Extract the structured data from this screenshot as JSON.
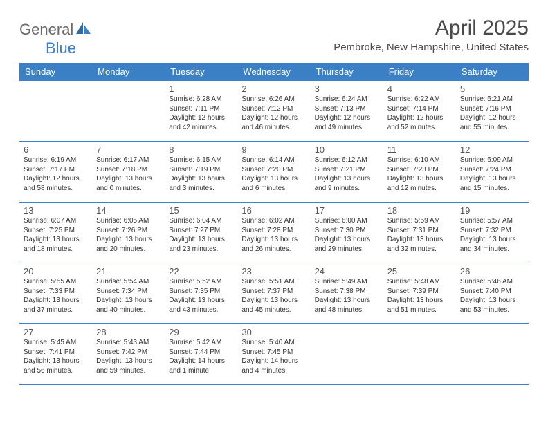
{
  "logo": {
    "text1": "General",
    "text2": "Blue"
  },
  "title": "April 2025",
  "subtitle": "Pembroke, New Hampshire, United States",
  "colors": {
    "header_bg": "#3b7fc4",
    "header_text": "#ffffff",
    "border": "#3b7fc4",
    "title_color": "#4a4a4a",
    "body_text": "#333333",
    "logo_gray": "#6a6a6a",
    "logo_blue": "#3b7fc4"
  },
  "day_headers": [
    "Sunday",
    "Monday",
    "Tuesday",
    "Wednesday",
    "Thursday",
    "Friday",
    "Saturday"
  ],
  "weeks": [
    [
      null,
      null,
      {
        "n": "1",
        "sunrise": "6:28 AM",
        "sunset": "7:11 PM",
        "daylight": "12 hours and 42 minutes."
      },
      {
        "n": "2",
        "sunrise": "6:26 AM",
        "sunset": "7:12 PM",
        "daylight": "12 hours and 46 minutes."
      },
      {
        "n": "3",
        "sunrise": "6:24 AM",
        "sunset": "7:13 PM",
        "daylight": "12 hours and 49 minutes."
      },
      {
        "n": "4",
        "sunrise": "6:22 AM",
        "sunset": "7:14 PM",
        "daylight": "12 hours and 52 minutes."
      },
      {
        "n": "5",
        "sunrise": "6:21 AM",
        "sunset": "7:16 PM",
        "daylight": "12 hours and 55 minutes."
      }
    ],
    [
      {
        "n": "6",
        "sunrise": "6:19 AM",
        "sunset": "7:17 PM",
        "daylight": "12 hours and 58 minutes."
      },
      {
        "n": "7",
        "sunrise": "6:17 AM",
        "sunset": "7:18 PM",
        "daylight": "13 hours and 0 minutes."
      },
      {
        "n": "8",
        "sunrise": "6:15 AM",
        "sunset": "7:19 PM",
        "daylight": "13 hours and 3 minutes."
      },
      {
        "n": "9",
        "sunrise": "6:14 AM",
        "sunset": "7:20 PM",
        "daylight": "13 hours and 6 minutes."
      },
      {
        "n": "10",
        "sunrise": "6:12 AM",
        "sunset": "7:21 PM",
        "daylight": "13 hours and 9 minutes."
      },
      {
        "n": "11",
        "sunrise": "6:10 AM",
        "sunset": "7:23 PM",
        "daylight": "13 hours and 12 minutes."
      },
      {
        "n": "12",
        "sunrise": "6:09 AM",
        "sunset": "7:24 PM",
        "daylight": "13 hours and 15 minutes."
      }
    ],
    [
      {
        "n": "13",
        "sunrise": "6:07 AM",
        "sunset": "7:25 PM",
        "daylight": "13 hours and 18 minutes."
      },
      {
        "n": "14",
        "sunrise": "6:05 AM",
        "sunset": "7:26 PM",
        "daylight": "13 hours and 20 minutes."
      },
      {
        "n": "15",
        "sunrise": "6:04 AM",
        "sunset": "7:27 PM",
        "daylight": "13 hours and 23 minutes."
      },
      {
        "n": "16",
        "sunrise": "6:02 AM",
        "sunset": "7:28 PM",
        "daylight": "13 hours and 26 minutes."
      },
      {
        "n": "17",
        "sunrise": "6:00 AM",
        "sunset": "7:30 PM",
        "daylight": "13 hours and 29 minutes."
      },
      {
        "n": "18",
        "sunrise": "5:59 AM",
        "sunset": "7:31 PM",
        "daylight": "13 hours and 32 minutes."
      },
      {
        "n": "19",
        "sunrise": "5:57 AM",
        "sunset": "7:32 PM",
        "daylight": "13 hours and 34 minutes."
      }
    ],
    [
      {
        "n": "20",
        "sunrise": "5:55 AM",
        "sunset": "7:33 PM",
        "daylight": "13 hours and 37 minutes."
      },
      {
        "n": "21",
        "sunrise": "5:54 AM",
        "sunset": "7:34 PM",
        "daylight": "13 hours and 40 minutes."
      },
      {
        "n": "22",
        "sunrise": "5:52 AM",
        "sunset": "7:35 PM",
        "daylight": "13 hours and 43 minutes."
      },
      {
        "n": "23",
        "sunrise": "5:51 AM",
        "sunset": "7:37 PM",
        "daylight": "13 hours and 45 minutes."
      },
      {
        "n": "24",
        "sunrise": "5:49 AM",
        "sunset": "7:38 PM",
        "daylight": "13 hours and 48 minutes."
      },
      {
        "n": "25",
        "sunrise": "5:48 AM",
        "sunset": "7:39 PM",
        "daylight": "13 hours and 51 minutes."
      },
      {
        "n": "26",
        "sunrise": "5:46 AM",
        "sunset": "7:40 PM",
        "daylight": "13 hours and 53 minutes."
      }
    ],
    [
      {
        "n": "27",
        "sunrise": "5:45 AM",
        "sunset": "7:41 PM",
        "daylight": "13 hours and 56 minutes."
      },
      {
        "n": "28",
        "sunrise": "5:43 AM",
        "sunset": "7:42 PM",
        "daylight": "13 hours and 59 minutes."
      },
      {
        "n": "29",
        "sunrise": "5:42 AM",
        "sunset": "7:44 PM",
        "daylight": "14 hours and 1 minute."
      },
      {
        "n": "30",
        "sunrise": "5:40 AM",
        "sunset": "7:45 PM",
        "daylight": "14 hours and 4 minutes."
      },
      null,
      null,
      null
    ]
  ]
}
